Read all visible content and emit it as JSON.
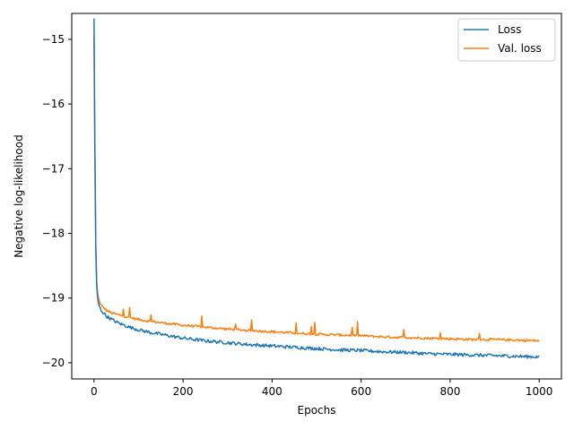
{
  "chart_data": {
    "type": "line",
    "title": "",
    "xlabel": "Epochs",
    "ylabel": "Negative log-likelihood",
    "xlim": [
      -50,
      1050
    ],
    "ylim": [
      -20.25,
      -14.6
    ],
    "xticks": [
      0,
      200,
      400,
      600,
      800,
      1000
    ],
    "yticks": [
      -20,
      -19,
      -18,
      -17,
      -16,
      -15
    ],
    "x_tick_labels": [
      "0",
      "200",
      "400",
      "600",
      "800",
      "1000"
    ],
    "y_tick_labels": [
      "−20",
      "−19",
      "−18",
      "−17",
      "−16",
      "−15"
    ],
    "grid": false,
    "legend_position": "top-right",
    "series": [
      {
        "name": "Loss",
        "color": "#1f77b4",
        "x": [
          0,
          1,
          2,
          3,
          4,
          5,
          6,
          8,
          10,
          12,
          15,
          20,
          25,
          30,
          40,
          50,
          60,
          80,
          100,
          125,
          150,
          175,
          200,
          250,
          300,
          350,
          400,
          450,
          500,
          550,
          600,
          650,
          700,
          750,
          800,
          850,
          900,
          950,
          1000
        ],
        "y": [
          -14.68,
          -15.6,
          -16.7,
          -17.6,
          -18.2,
          -18.6,
          -18.8,
          -19.0,
          -19.08,
          -19.13,
          -19.18,
          -19.22,
          -19.26,
          -19.29,
          -19.33,
          -19.37,
          -19.4,
          -19.45,
          -19.49,
          -19.53,
          -19.56,
          -19.59,
          -19.62,
          -19.66,
          -19.69,
          -19.72,
          -19.74,
          -19.76,
          -19.78,
          -19.8,
          -19.81,
          -19.83,
          -19.84,
          -19.86,
          -19.87,
          -19.88,
          -19.89,
          -19.9,
          -19.91
        ]
      },
      {
        "name": "Val. loss",
        "color": "#ff7f0e",
        "x": [
          0,
          1,
          2,
          3,
          4,
          5,
          6,
          8,
          10,
          12,
          15,
          20,
          25,
          30,
          40,
          50,
          60,
          80,
          100,
          125,
          150,
          175,
          200,
          250,
          300,
          350,
          400,
          450,
          500,
          550,
          600,
          650,
          700,
          750,
          800,
          850,
          900,
          950,
          1000
        ],
        "y": [
          -14.95,
          -15.8,
          -16.8,
          -17.6,
          -18.2,
          -18.55,
          -18.75,
          -18.92,
          -19.0,
          -19.05,
          -19.1,
          -19.14,
          -19.17,
          -19.2,
          -19.23,
          -19.25,
          -19.27,
          -19.3,
          -19.33,
          -19.36,
          -19.38,
          -19.4,
          -19.42,
          -19.45,
          -19.48,
          -19.5,
          -19.52,
          -19.54,
          -19.56,
          -19.57,
          -19.58,
          -19.6,
          -19.61,
          -19.62,
          -19.63,
          -19.64,
          -19.64,
          -19.65,
          -19.66
        ]
      }
    ]
  }
}
